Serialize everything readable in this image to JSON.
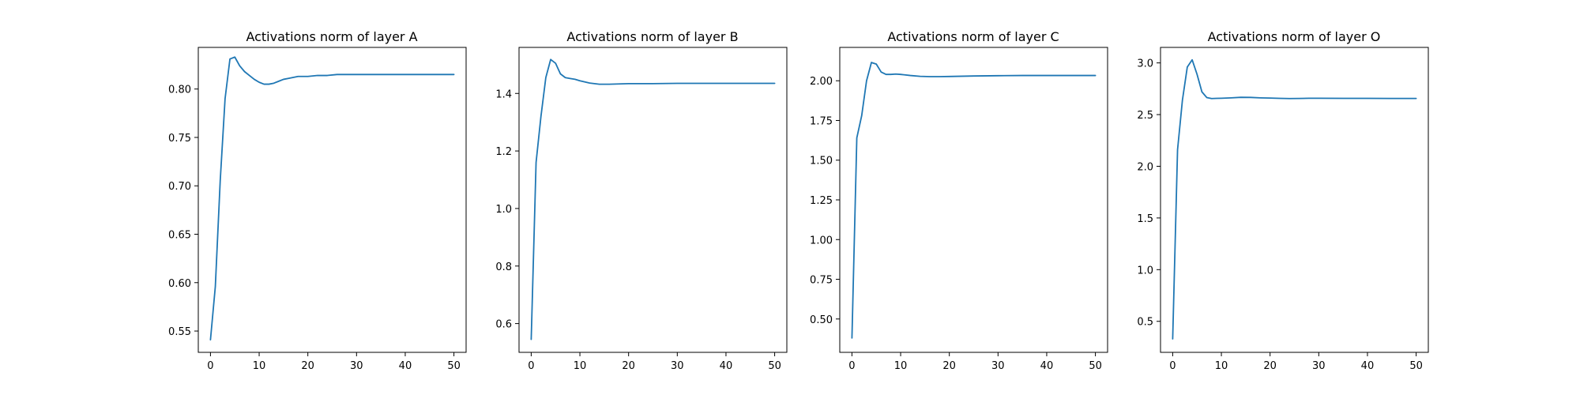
{
  "chart_data": [
    {
      "type": "line",
      "title": "Activations norm of layer A",
      "xlabel": "",
      "ylabel": "",
      "xlim": [
        -2.5,
        52.5
      ],
      "ylim": [
        0.528,
        0.843
      ],
      "xticks": [
        0,
        10,
        20,
        30,
        40,
        50
      ],
      "yticks": [
        0.55,
        0.6,
        0.65,
        0.7,
        0.75,
        0.8
      ],
      "grid": false,
      "line_color": "#1f77b4",
      "series": [
        {
          "x": [
            0,
            1,
            2,
            3,
            4,
            5,
            6,
            7,
            8,
            9,
            10,
            11,
            12,
            13,
            14,
            15,
            16,
            17,
            18,
            19,
            20,
            22,
            24,
            26,
            28,
            30,
            35,
            40,
            45,
            50
          ],
          "y": [
            0.541,
            0.596,
            0.705,
            0.79,
            0.831,
            0.833,
            0.824,
            0.818,
            0.814,
            0.81,
            0.807,
            0.805,
            0.805,
            0.806,
            0.808,
            0.81,
            0.811,
            0.812,
            0.813,
            0.813,
            0.813,
            0.814,
            0.814,
            0.815,
            0.815,
            0.815,
            0.815,
            0.815,
            0.815,
            0.815
          ]
        }
      ]
    },
    {
      "type": "line",
      "title": "Activations norm of layer B",
      "xlabel": "",
      "ylabel": "",
      "xlim": [
        -2.5,
        52.5
      ],
      "ylim": [
        0.5,
        1.56
      ],
      "xticks": [
        0,
        10,
        20,
        30,
        40,
        50
      ],
      "yticks": [
        0.6,
        0.8,
        1.0,
        1.2,
        1.4
      ],
      "grid": false,
      "line_color": "#1f77b4",
      "series": [
        {
          "x": [
            0,
            1,
            2,
            3,
            4,
            5,
            6,
            7,
            8,
            9,
            10,
            12,
            14,
            16,
            18,
            20,
            25,
            30,
            35,
            40,
            45,
            50
          ],
          "y": [
            0.545,
            1.16,
            1.32,
            1.455,
            1.518,
            1.505,
            1.468,
            1.455,
            1.452,
            1.449,
            1.444,
            1.436,
            1.432,
            1.432,
            1.433,
            1.434,
            1.434,
            1.435,
            1.435,
            1.435,
            1.435,
            1.435
          ]
        }
      ]
    },
    {
      "type": "line",
      "title": "Activations norm of layer C",
      "xlabel": "",
      "ylabel": "",
      "xlim": [
        -2.5,
        52.5
      ],
      "ylim": [
        0.29,
        2.21
      ],
      "xticks": [
        0,
        10,
        20,
        30,
        40,
        50
      ],
      "yticks": [
        0.5,
        0.75,
        1.0,
        1.25,
        1.5,
        1.75,
        2.0,
        2.25
      ],
      "grid": false,
      "line_color": "#1f77b4",
      "series": [
        {
          "x": [
            0,
            1,
            2,
            3,
            4,
            5,
            6,
            7,
            8,
            9,
            10,
            12,
            14,
            16,
            18,
            20,
            25,
            30,
            35,
            40,
            45,
            50
          ],
          "y": [
            0.38,
            1.64,
            1.78,
            2.0,
            2.115,
            2.105,
            2.055,
            2.04,
            2.04,
            2.042,
            2.04,
            2.033,
            2.028,
            2.026,
            2.026,
            2.027,
            2.03,
            2.032,
            2.033,
            2.033,
            2.033,
            2.033
          ]
        }
      ]
    },
    {
      "type": "line",
      "title": "Activations norm of layer O",
      "xlabel": "",
      "ylabel": "",
      "xlim": [
        -2.5,
        52.5
      ],
      "ylim": [
        0.2,
        3.15
      ],
      "xticks": [
        0,
        10,
        20,
        30,
        40,
        50
      ],
      "yticks": [
        0.5,
        1.0,
        1.5,
        2.0,
        2.5,
        3.0
      ],
      "grid": false,
      "line_color": "#1f77b4",
      "series": [
        {
          "x": [
            0,
            1,
            2,
            3,
            4,
            5,
            6,
            7,
            8,
            9,
            10,
            12,
            14,
            16,
            18,
            20,
            22,
            24,
            26,
            28,
            30,
            35,
            40,
            45,
            50
          ],
          "y": [
            0.33,
            2.16,
            2.64,
            2.96,
            3.03,
            2.89,
            2.72,
            2.665,
            2.655,
            2.657,
            2.658,
            2.662,
            2.667,
            2.666,
            2.662,
            2.66,
            2.657,
            2.655,
            2.656,
            2.658,
            2.658,
            2.657,
            2.657,
            2.656,
            2.656
          ]
        }
      ]
    }
  ]
}
